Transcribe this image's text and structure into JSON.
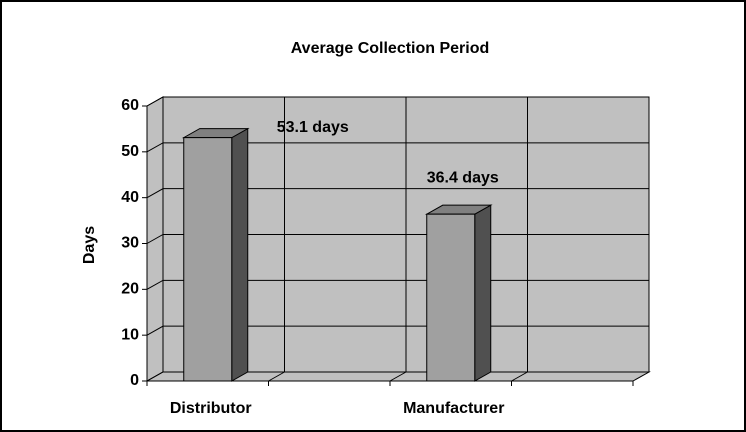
{
  "chart_data": {
    "type": "bar",
    "title": "Average Collection Period",
    "ylabel": "Days",
    "categories": [
      "Distributor",
      "Manufacturer"
    ],
    "values": [
      53.1,
      36.4
    ],
    "value_labels": [
      "53.1 days",
      "36.4 days"
    ],
    "color": "#a0a0a0",
    "ylim": [
      0,
      60
    ],
    "yticks": [
      0,
      10,
      20,
      30,
      40,
      50,
      60
    ],
    "grid": true
  }
}
